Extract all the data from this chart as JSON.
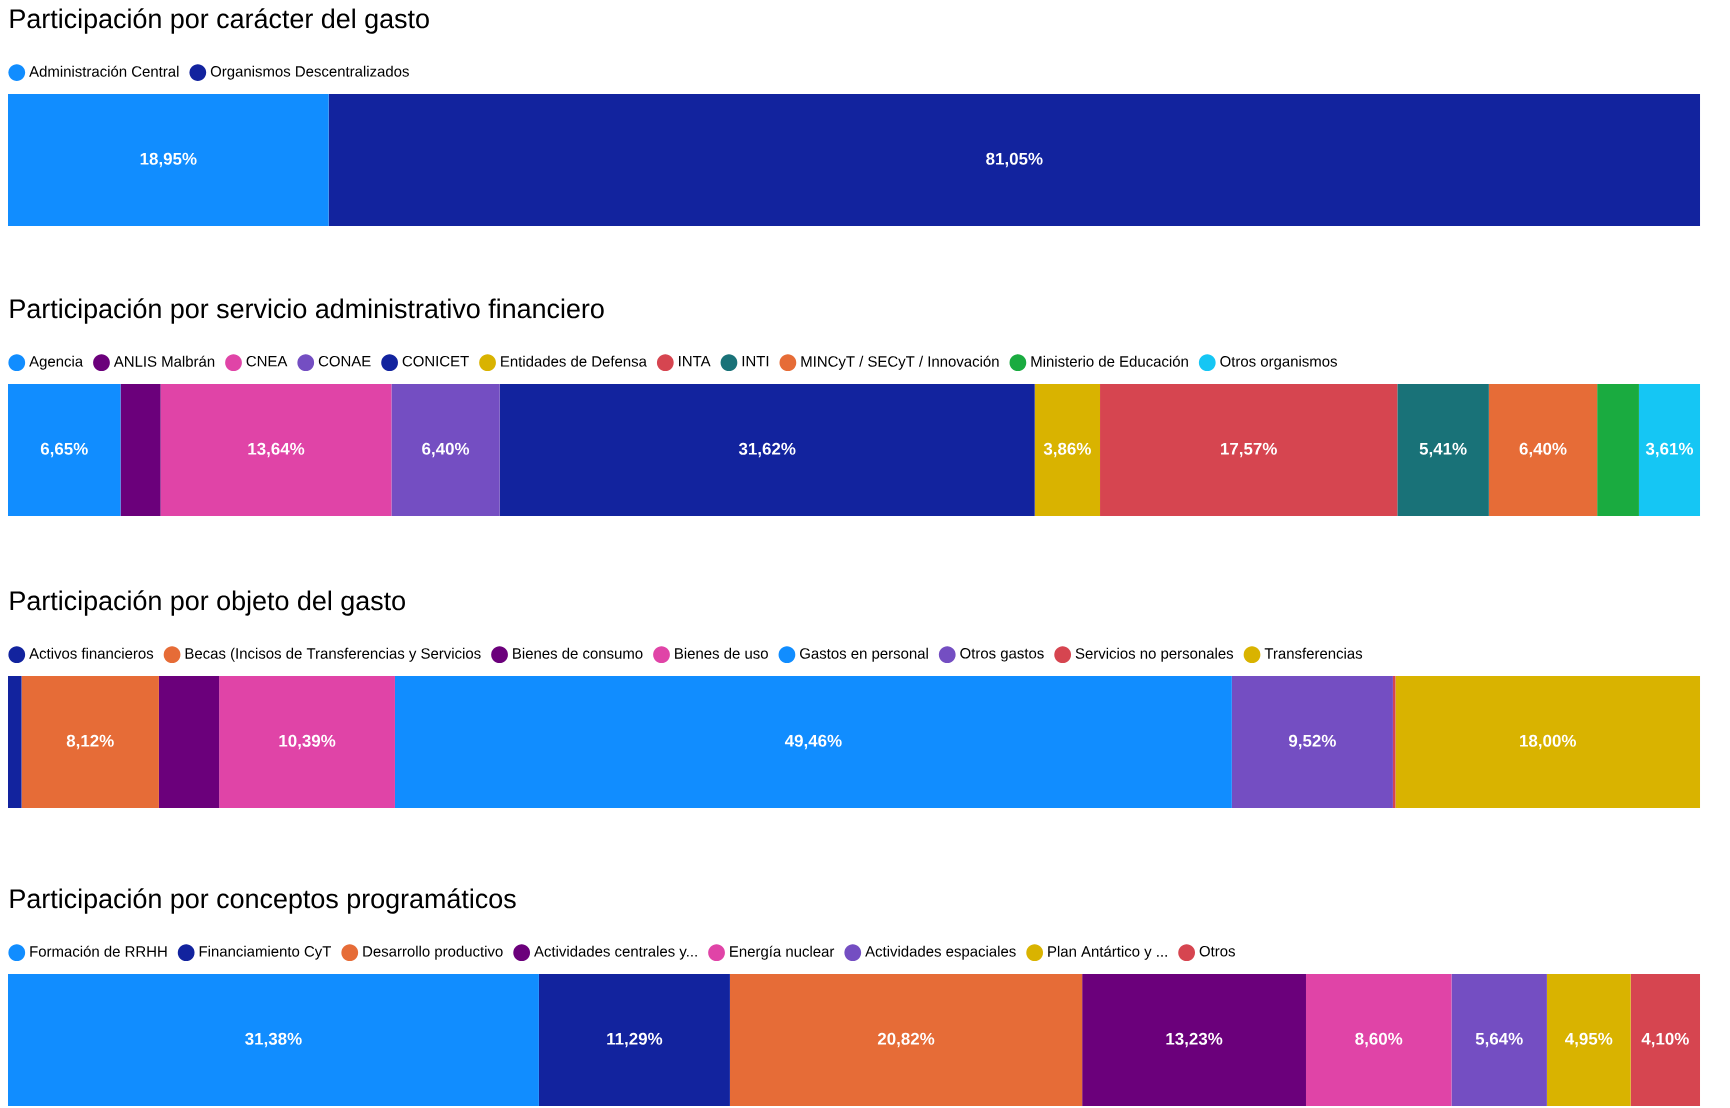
{
  "chart_data": [
    {
      "type": "bar",
      "title": "Participación por carácter del gasto",
      "orientation": "horizontal",
      "stacked": true,
      "categories": [
        null
      ],
      "legend": "top left",
      "series": [
        {
          "name": "Administración Central",
          "color": "#118DFF",
          "values": [
            18.95
          ],
          "value_labels": [
            "18,95%"
          ]
        },
        {
          "name": "Organismos Descentralizados",
          "color": "#12239E",
          "values": [
            81.05
          ],
          "value_labels": [
            "81,05%"
          ]
        }
      ]
    },
    {
      "type": "bar",
      "title": "Participación por servicio administrativo financiero",
      "orientation": "horizontal",
      "stacked": true,
      "categories": [
        null
      ],
      "legend": "top left",
      "series": [
        {
          "name": "Agencia",
          "color": "#118DFF",
          "values": [
            6.65
          ],
          "value_labels": [
            "6,65%"
          ]
        },
        {
          "name": "ANLIS Malbrán",
          "color": "#6B007B",
          "values": [
            2.37
          ],
          "value_labels": [
            null
          ]
        },
        {
          "name": "CNEA",
          "color": "#E044A7",
          "values": [
            13.64
          ],
          "value_labels": [
            "13,64%"
          ]
        },
        {
          "name": "CONAE",
          "color": "#744EC2",
          "values": [
            6.4
          ],
          "value_labels": [
            "6,40%"
          ]
        },
        {
          "name": "CONICET",
          "color": "#12239E",
          "values": [
            31.62
          ],
          "value_labels": [
            "31,62%"
          ]
        },
        {
          "name": "Entidades de Defensa",
          "color": "#D9B300",
          "values": [
            3.86
          ],
          "value_labels": [
            "3,86%"
          ]
        },
        {
          "name": "INTA",
          "color": "#D64550",
          "values": [
            17.57
          ],
          "value_labels": [
            "17,57%"
          ]
        },
        {
          "name": "INTI",
          "color": "#197278",
          "values": [
            5.41
          ],
          "value_labels": [
            "5,41%"
          ]
        },
        {
          "name": "MINCyT / SECyT / Innovación",
          "color": "#E66C37",
          "values": [
            6.4
          ],
          "value_labels": [
            "6,40%"
          ]
        },
        {
          "name": "Ministerio de Educación",
          "color": "#1AAB40",
          "values": [
            2.47
          ],
          "value_labels": [
            null
          ]
        },
        {
          "name": "Otros organismos",
          "color": "#15C6F4",
          "values": [
            3.61
          ],
          "value_labels": [
            "3,61%"
          ]
        }
      ]
    },
    {
      "type": "bar",
      "title": "Participación por objeto del gasto",
      "orientation": "horizontal",
      "stacked": true,
      "categories": [
        null
      ],
      "legend": "top left",
      "series": [
        {
          "name": "Activos financieros",
          "color": "#12239E",
          "values": [
            0.8
          ],
          "value_labels": [
            null
          ]
        },
        {
          "name": "Becas (Incisos de Transferencias y Servicios",
          "color": "#E66C37",
          "values": [
            8.12
          ],
          "value_labels": [
            "8,12%"
          ]
        },
        {
          "name": "Bienes de consumo",
          "color": "#6B007B",
          "values": [
            3.56
          ],
          "value_labels": [
            null
          ]
        },
        {
          "name": "Bienes de uso",
          "color": "#E044A7",
          "values": [
            10.39
          ],
          "value_labels": [
            "10,39%"
          ]
        },
        {
          "name": "Gastos en personal",
          "color": "#118DFF",
          "values": [
            49.46
          ],
          "value_labels": [
            "49,46%"
          ]
        },
        {
          "name": "Otros gastos",
          "color": "#744EC2",
          "values": [
            9.52
          ],
          "value_labels": [
            "9,52%"
          ]
        },
        {
          "name": "Servicios no personales",
          "color": "#D64550",
          "values": [
            0.15
          ],
          "value_labels": [
            null
          ]
        },
        {
          "name": "Transferencias",
          "color": "#D9B300",
          "values": [
            18.0
          ],
          "value_labels": [
            "18,00%"
          ]
        }
      ]
    },
    {
      "type": "bar",
      "title": "Participación por conceptos programáticos",
      "orientation": "horizontal",
      "stacked": true,
      "categories": [
        null
      ],
      "legend": "top left",
      "series": [
        {
          "name": "Formación de RRHH",
          "color": "#118DFF",
          "values": [
            31.38
          ],
          "value_labels": [
            "31,38%"
          ]
        },
        {
          "name": "Financiamiento CyT",
          "color": "#12239E",
          "values": [
            11.29
          ],
          "value_labels": [
            "11,29%"
          ]
        },
        {
          "name": "Desarrollo productivo",
          "color": "#E66C37",
          "values": [
            20.82
          ],
          "value_labels": [
            "20,82%"
          ]
        },
        {
          "name": "Actividades centrales y...",
          "color": "#6B007B",
          "values": [
            13.23
          ],
          "value_labels": [
            "13,23%"
          ]
        },
        {
          "name": "Energía nuclear",
          "color": "#E044A7",
          "values": [
            8.6
          ],
          "value_labels": [
            "8,60%"
          ]
        },
        {
          "name": "Actividades espaciales",
          "color": "#744EC2",
          "values": [
            5.64
          ],
          "value_labels": [
            "5,64%"
          ]
        },
        {
          "name": "Plan Antártico y ...",
          "color": "#D9B300",
          "values": [
            4.95
          ],
          "value_labels": [
            "4,95%"
          ]
        },
        {
          "name": "Otros",
          "color": "#D64550",
          "values": [
            4.1
          ],
          "value_labels": [
            "4,10%"
          ]
        }
      ]
    }
  ]
}
